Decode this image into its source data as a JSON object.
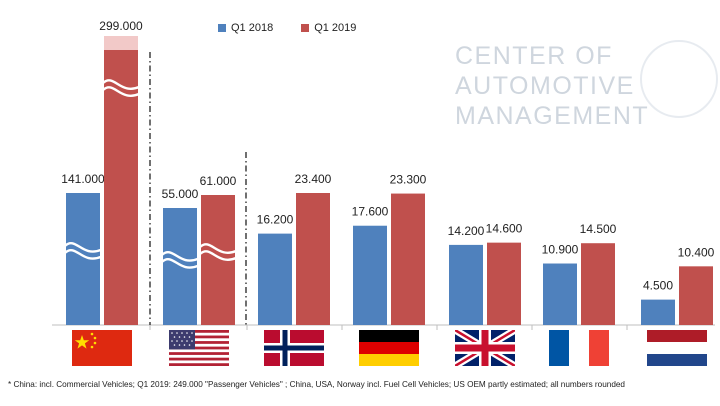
{
  "chart_data": {
    "type": "bar",
    "title": "",
    "xlabel": "",
    "ylabel": "",
    "categories": [
      "China",
      "USA",
      "Norway",
      "Germany",
      "UK",
      "France",
      "Netherlands"
    ],
    "series": [
      {
        "name": "Q1 2018",
        "values": [
          141000,
          55000,
          16200,
          17600,
          14200,
          10900,
          4500
        ],
        "labels": [
          "141.000",
          "55.000",
          "16.200",
          "17.600",
          "14.200",
          "10.900",
          "4.500"
        ]
      },
      {
        "name": "Q1 2019",
        "values": [
          299000,
          61000,
          23400,
          23300,
          14600,
          14500,
          10400
        ],
        "labels": [
          "299.000",
          "61.000",
          "23.400",
          "23.300",
          "14.600",
          "14.500",
          "10.400"
        ]
      }
    ],
    "axis_breaks": [
      "China",
      "USA"
    ],
    "legend_position": "top",
    "grid": false,
    "colors": {
      "q1_2018": "#4f81bd",
      "q1_2019": "#c0504d",
      "china_q1_2019_extra": "#f2c9c8"
    }
  },
  "logo": {
    "line1": "CENTER OF",
    "line2": "AUTOMOTIVE",
    "line3": "MANAGEMENT"
  },
  "flags": [
    "china-flag-icon",
    "usa-flag-icon",
    "norway-flag-icon",
    "germany-flag-icon",
    "uk-flag-icon",
    "france-flag-icon",
    "netherlands-flag-icon"
  ],
  "footnote": "* China: incl. Commercial Vehicles; Q1 2019: 249.000 \"Passenger Vehicles\" ; China, USA, Norway incl. Fuel Cell Vehicles; US OEM partly estimated; all numbers rounded"
}
